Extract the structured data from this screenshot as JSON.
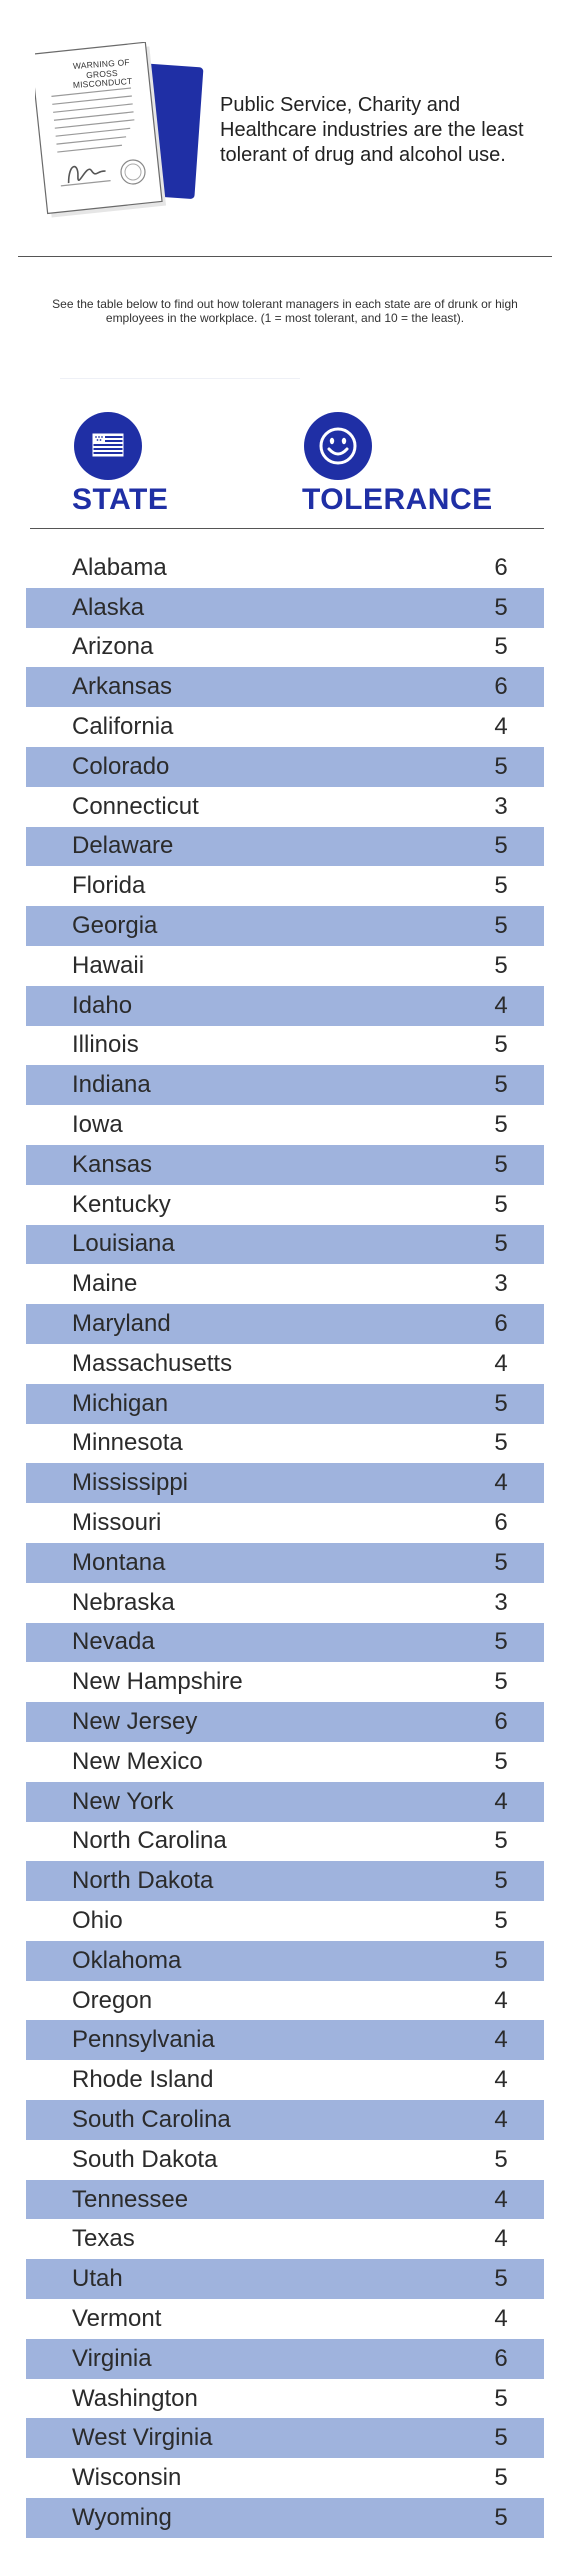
{
  "illustration": {
    "icon": "warning-document-icon",
    "heading": "WARNING OF GROSS MISCONDUCT"
  },
  "headline": "Public Service, Charity and Healthcare industries are the least tolerant of drug and alcohol use.",
  "intro": "See the table below to find out how tolerant managers in each state are of drunk or high employees in the workplace. (1 = most tolerant, and 10 = the least).",
  "columns": {
    "state": "STATE",
    "tolerance": "TOLERANCE",
    "state_icon": "us-flag-icon",
    "tolerance_icon": "smiley-face-icon"
  },
  "colors": {
    "accent": "#1f2fa5",
    "row_shade": "#9fb3dd"
  },
  "chart_data": {
    "type": "table",
    "columns": [
      "STATE",
      "TOLERANCE"
    ],
    "rows": [
      [
        "Alabama",
        "6"
      ],
      [
        "Alaska",
        "5"
      ],
      [
        "Arizona",
        "5"
      ],
      [
        "Arkansas",
        "6"
      ],
      [
        "California",
        "4"
      ],
      [
        "Colorado",
        "5"
      ],
      [
        "Connecticut",
        "3"
      ],
      [
        "Delaware",
        "5"
      ],
      [
        "Florida",
        "5"
      ],
      [
        "Georgia",
        "5"
      ],
      [
        "Hawaii",
        "5"
      ],
      [
        "Idaho",
        "4"
      ],
      [
        "Illinois",
        "5"
      ],
      [
        "Indiana",
        "5"
      ],
      [
        "Iowa",
        "5"
      ],
      [
        "Kansas",
        "5"
      ],
      [
        "Kentucky",
        "5"
      ],
      [
        "Louisiana",
        "5"
      ],
      [
        "Maine",
        "3"
      ],
      [
        "Maryland",
        "6"
      ],
      [
        "Massachusetts",
        "4"
      ],
      [
        "Michigan",
        "5"
      ],
      [
        "Minnesota",
        "5"
      ],
      [
        "Mississippi",
        "4"
      ],
      [
        "Missouri",
        "6"
      ],
      [
        "Montana",
        "5"
      ],
      [
        "Nebraska",
        "3"
      ],
      [
        "Nevada",
        "5"
      ],
      [
        "New Hampshire",
        "5"
      ],
      [
        "New Jersey",
        "6"
      ],
      [
        "New Mexico",
        "5"
      ],
      [
        "New York",
        "4"
      ],
      [
        "North Carolina",
        "5"
      ],
      [
        "North Dakota",
        "5"
      ],
      [
        "Ohio",
        "5"
      ],
      [
        "Oklahoma",
        "5"
      ],
      [
        "Oregon",
        "4"
      ],
      [
        "Pennsylvania",
        "4"
      ],
      [
        "Rhode Island",
        "4"
      ],
      [
        "South Carolina",
        "4"
      ],
      [
        "South Dakota",
        "5"
      ],
      [
        "Tennessee",
        "4"
      ],
      [
        "Texas",
        "4"
      ],
      [
        "Utah",
        "5"
      ],
      [
        "Vermont",
        "4"
      ],
      [
        "Virginia",
        "6"
      ],
      [
        "Washington",
        "5"
      ],
      [
        "West Virginia",
        "5"
      ],
      [
        "Wisconsin",
        "5"
      ],
      [
        "Wyoming",
        "5"
      ]
    ]
  }
}
